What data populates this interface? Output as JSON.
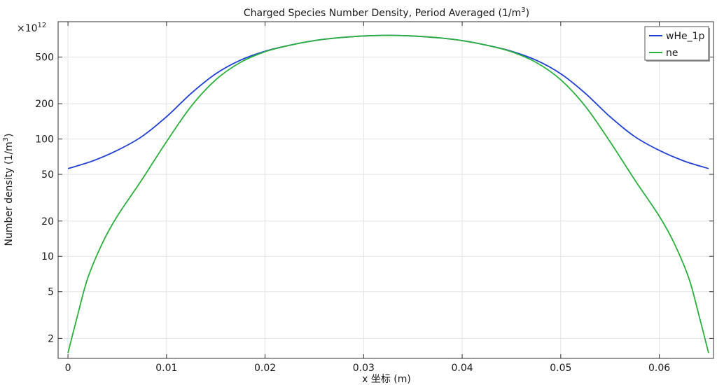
{
  "chart_data": {
    "type": "line",
    "title": "Charged Species Number Density, Period Averaged (1/m",
    "title_sup": "3",
    "title_end": ")",
    "xlabel": "x 坐标 (m)",
    "ylabel": "Number density (1/m",
    "ylabel_sup": "3",
    "ylabel_end": ")",
    "y_multiplier_base": "×10",
    "y_multiplier_exp": "12",
    "y_scale": "log",
    "xlim": [
      -0.001,
      0.0655
    ],
    "ylim": [
      1.35,
      1000
    ],
    "x_ticks": [
      0,
      0.01,
      0.02,
      0.03,
      0.04,
      0.05,
      0.06
    ],
    "x_tick_labels": [
      "0",
      "0.01",
      "0.02",
      "0.03",
      "0.04",
      "0.05",
      "0.06"
    ],
    "y_ticks": [
      2,
      5,
      10,
      20,
      50,
      100,
      200,
      500
    ],
    "y_tick_labels": [
      "2",
      "5",
      "10",
      "20",
      "50",
      "100",
      "200",
      "500"
    ],
    "grid": true,
    "legend_position": "top-right",
    "series": [
      {
        "name": "wHe_1p",
        "color": "#1f3fd6",
        "x": [
          0,
          0.0025,
          0.005,
          0.0075,
          0.01,
          0.0125,
          0.015,
          0.0175,
          0.02,
          0.0225,
          0.025,
          0.0275,
          0.03,
          0.0325,
          0.035,
          0.0375,
          0.04,
          0.0425,
          0.045,
          0.0475,
          0.05,
          0.0525,
          0.055,
          0.0575,
          0.06,
          0.0625,
          0.065
        ],
        "y": [
          56,
          65,
          80,
          105,
          155,
          245,
          360,
          470,
          560,
          630,
          690,
          730,
          755,
          765,
          755,
          730,
          690,
          630,
          560,
          470,
          360,
          245,
          155,
          105,
          80,
          65,
          56
        ]
      },
      {
        "name": "ne",
        "color": "#2ab03c",
        "x": [
          0,
          0.001,
          0.002,
          0.0035,
          0.005,
          0.0075,
          0.01,
          0.0125,
          0.015,
          0.0175,
          0.02,
          0.0225,
          0.025,
          0.0275,
          0.03,
          0.0325,
          0.035,
          0.0375,
          0.04,
          0.0425,
          0.045,
          0.0475,
          0.05,
          0.0525,
          0.055,
          0.0575,
          0.06,
          0.0615,
          0.063,
          0.064,
          0.065
        ],
        "y": [
          1.5,
          3.2,
          6.5,
          13,
          22,
          45,
          95,
          190,
          320,
          450,
          555,
          630,
          690,
          730,
          755,
          765,
          755,
          730,
          690,
          630,
          555,
          450,
          320,
          190,
          95,
          45,
          22,
          13,
          6.5,
          3.2,
          1.5
        ]
      }
    ]
  }
}
